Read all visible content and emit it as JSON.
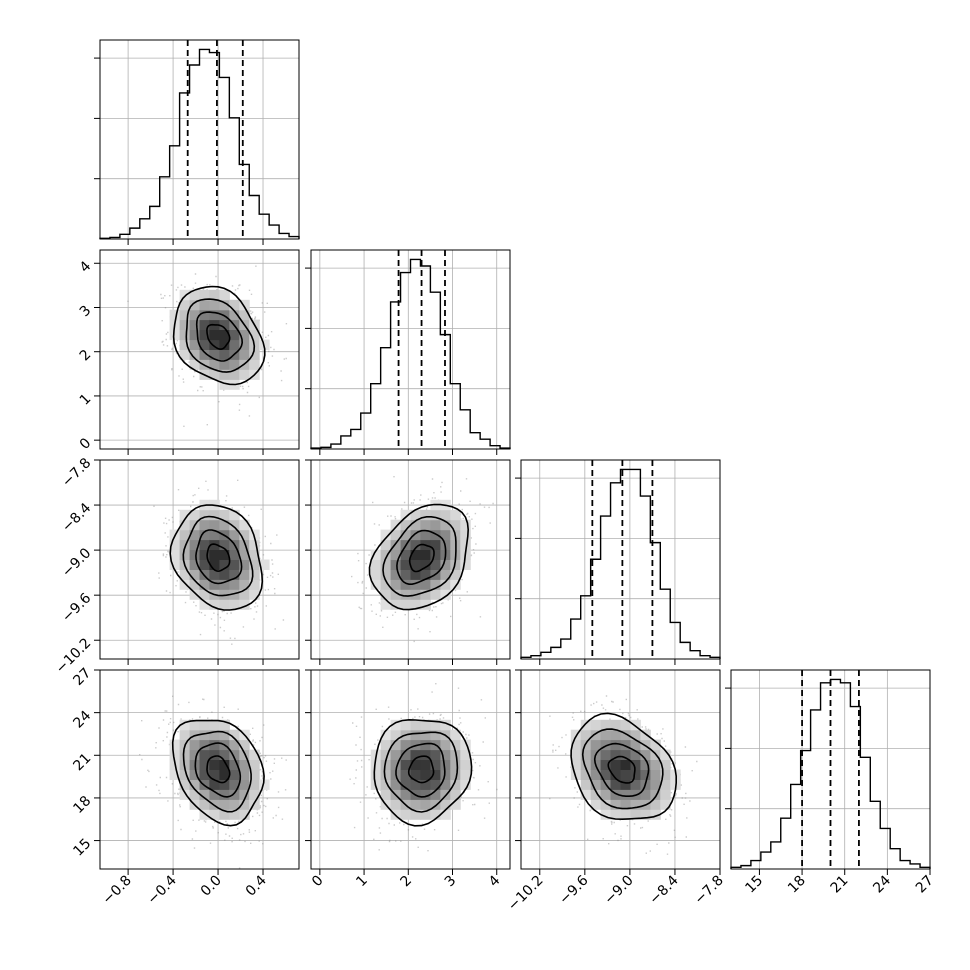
{
  "chart_data": {
    "type": "corner",
    "parameters": [
      {
        "name": "",
        "range": [
          -1.05,
          0.72
        ],
        "ticks": [
          -0.8,
          -0.4,
          0.0,
          0.4
        ],
        "tick_labels": [
          "−0.8",
          "−0.4",
          "0.0",
          "0.4"
        ],
        "quantiles": [
          -0.27,
          -0.01,
          0.22
        ],
        "hist_edges_start": -1.05,
        "hist_bin_width": 0.0885,
        "hist_values": [
          0.2,
          0.5,
          1.5,
          3.5,
          6.5,
          10.5,
          20,
          30,
          47,
          56,
          61,
          60,
          52,
          39,
          24,
          14,
          8,
          4.5,
          1.8,
          0.8
        ]
      },
      {
        "name": "",
        "range": [
          -0.2,
          4.3
        ],
        "ticks": [
          0,
          1,
          2,
          3,
          4
        ],
        "tick_labels": [
          "0",
          "1",
          "2",
          "3",
          "4"
        ],
        "quantiles": [
          1.78,
          2.3,
          2.83
        ],
        "hist_edges_start": -0.2,
        "hist_bin_width": 0.225,
        "hist_values": [
          0.3,
          0.5,
          1.5,
          4,
          6,
          11,
          20,
          31,
          45,
          54,
          58,
          56,
          48,
          35,
          20,
          12,
          5,
          3,
          1,
          0.3
        ]
      },
      {
        "name": "",
        "range": [
          -10.45,
          -7.8
        ],
        "ticks": [
          -10.2,
          -9.6,
          -9.0,
          -8.4,
          -7.8
        ],
        "tick_labels": [
          "−10.2",
          "−9.6",
          "−9.0",
          "−8.4",
          "−7.8"
        ],
        "quantiles": [
          -9.5,
          -9.1,
          -8.7
        ],
        "hist_edges_start": -10.45,
        "hist_bin_width": 0.1325,
        "hist_values": [
          0.5,
          1,
          2,
          3.5,
          6,
          12,
          19,
          30,
          43,
          53,
          57,
          57,
          49,
          35,
          21,
          11,
          5,
          2.5,
          1,
          0.5
        ]
      },
      {
        "name": "",
        "range": [
          13,
          27
        ],
        "ticks": [
          15,
          18,
          21,
          24,
          27
        ],
        "tick_labels": [
          "15",
          "18",
          "21",
          "24",
          "27"
        ],
        "quantiles": [
          18.0,
          20.0,
          22.0
        ],
        "hist_edges_start": 13,
        "hist_bin_width": 0.7,
        "hist_values": [
          0.5,
          1,
          2.5,
          5,
          8,
          15,
          25,
          35,
          47,
          55,
          56,
          55,
          48,
          33,
          20,
          12,
          6,
          2.5,
          1.5,
          0.5
        ]
      }
    ],
    "density_2d": [
      {
        "x_param": 0,
        "y_param": 1,
        "center": [
          0.0,
          2.35
        ],
        "sigma": [
          0.2,
          0.55
        ],
        "corr": -0.25
      },
      {
        "x_param": 0,
        "y_param": 2,
        "center": [
          0.0,
          -9.1
        ],
        "sigma": [
          0.2,
          0.35
        ],
        "corr": -0.2
      },
      {
        "x_param": 1,
        "y_param": 2,
        "center": [
          2.3,
          -9.1
        ],
        "sigma": [
          0.55,
          0.35
        ],
        "corr": 0.3
      },
      {
        "x_param": 0,
        "y_param": 3,
        "center": [
          0.0,
          20.0
        ],
        "sigma": [
          0.2,
          1.85
        ],
        "corr": -0.25
      },
      {
        "x_param": 1,
        "y_param": 3,
        "center": [
          2.3,
          20.0
        ],
        "sigma": [
          0.55,
          1.85
        ],
        "corr": 0.05
      },
      {
        "x_param": 2,
        "y_param": 3,
        "center": [
          -9.1,
          20.0
        ],
        "sigma": [
          0.35,
          1.85
        ],
        "corr": -0.25
      }
    ],
    "contour_levels": [
      0.5,
      1.0,
      1.5,
      2.0
    ],
    "grid": true,
    "colors": {
      "hist": "#000000",
      "grid": "#b0b0b0",
      "points": "#8c8c8c",
      "quantile_line": "#000000"
    }
  }
}
